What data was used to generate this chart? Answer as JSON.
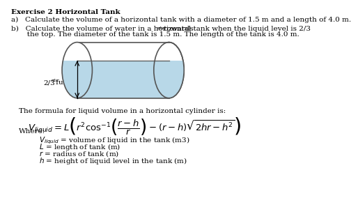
{
  "title": "Exercise 2 Horizontal Tank",
  "part_a": "a)   Calculate the volume of a horizontal tank with a diameter of 1.5 m and a length of 4.0 m.",
  "part_b_line1": "b)   Calculate the volume of water in a horizontal tank when the liquid level is 2/3",
  "part_b_rds": "rds",
  "part_b_towards": " towards",
  "part_b_line2": "       the top. The diameter of the tank is 1.5 m. The length of the tank is 4.0 m.",
  "label_23rds_full": "2/3",
  "label_rds": "rds",
  "label_full": " full",
  "formula_intro": "The formula for liquid volume in a horizontal cylinder is:",
  "where_label": "Where:",
  "var1": "= volume of liquid in the tank (m3)",
  "var2": "= length of tank (m)",
  "var3": "= radius of tank (m)",
  "var4": "= height of liquid level in the tank (m)",
  "bg_color": "#ffffff",
  "text_color": "#000000",
  "water_color": "#b8d8e8",
  "cylinder_edge": "#555555"
}
